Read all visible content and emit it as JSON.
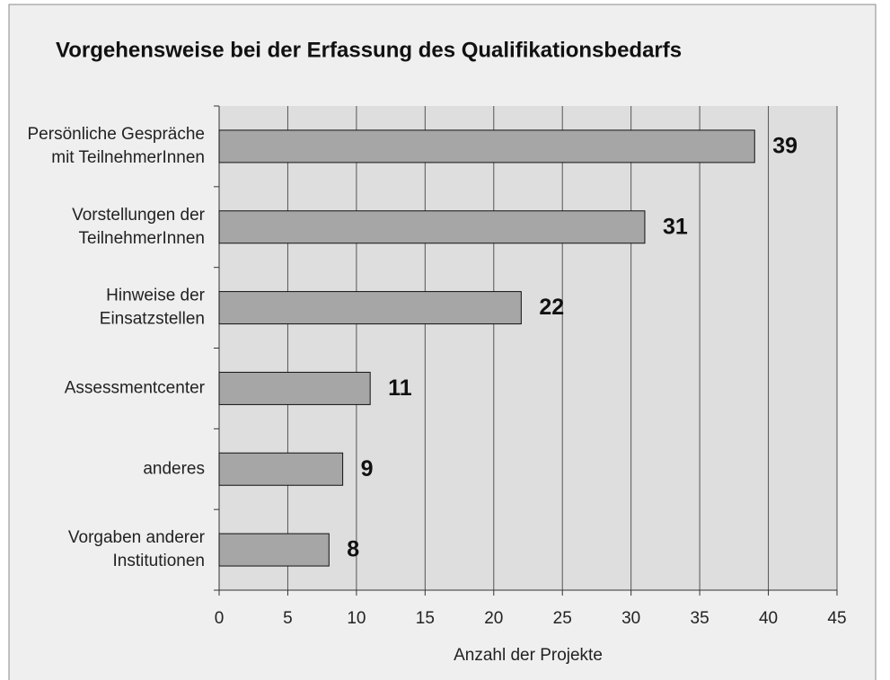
{
  "chart_data": {
    "type": "bar",
    "orientation": "horizontal",
    "title": "Vorgehensweise bei der Erfassung des Qualifikationsbedarfs",
    "categories": [
      [
        "Persönliche Gespräche",
        "mit TeilnehmerInnen"
      ],
      [
        "Vorstellungen der",
        "TeilnehmerInnen"
      ],
      [
        "Hinweise der",
        "Einsatzstellen"
      ],
      [
        "Assessmentcenter"
      ],
      [
        "anderes"
      ],
      [
        "Vorgaben anderer",
        "Institutionen"
      ]
    ],
    "values": [
      39,
      31,
      22,
      11,
      9,
      8
    ],
    "color": "#a6a6a6",
    "xlabel": "Anzahl der Projekte",
    "xlim": [
      0,
      45
    ],
    "xticks": [
      0,
      5,
      10,
      15,
      20,
      25,
      30,
      35,
      40,
      45
    ],
    "grid": true
  }
}
